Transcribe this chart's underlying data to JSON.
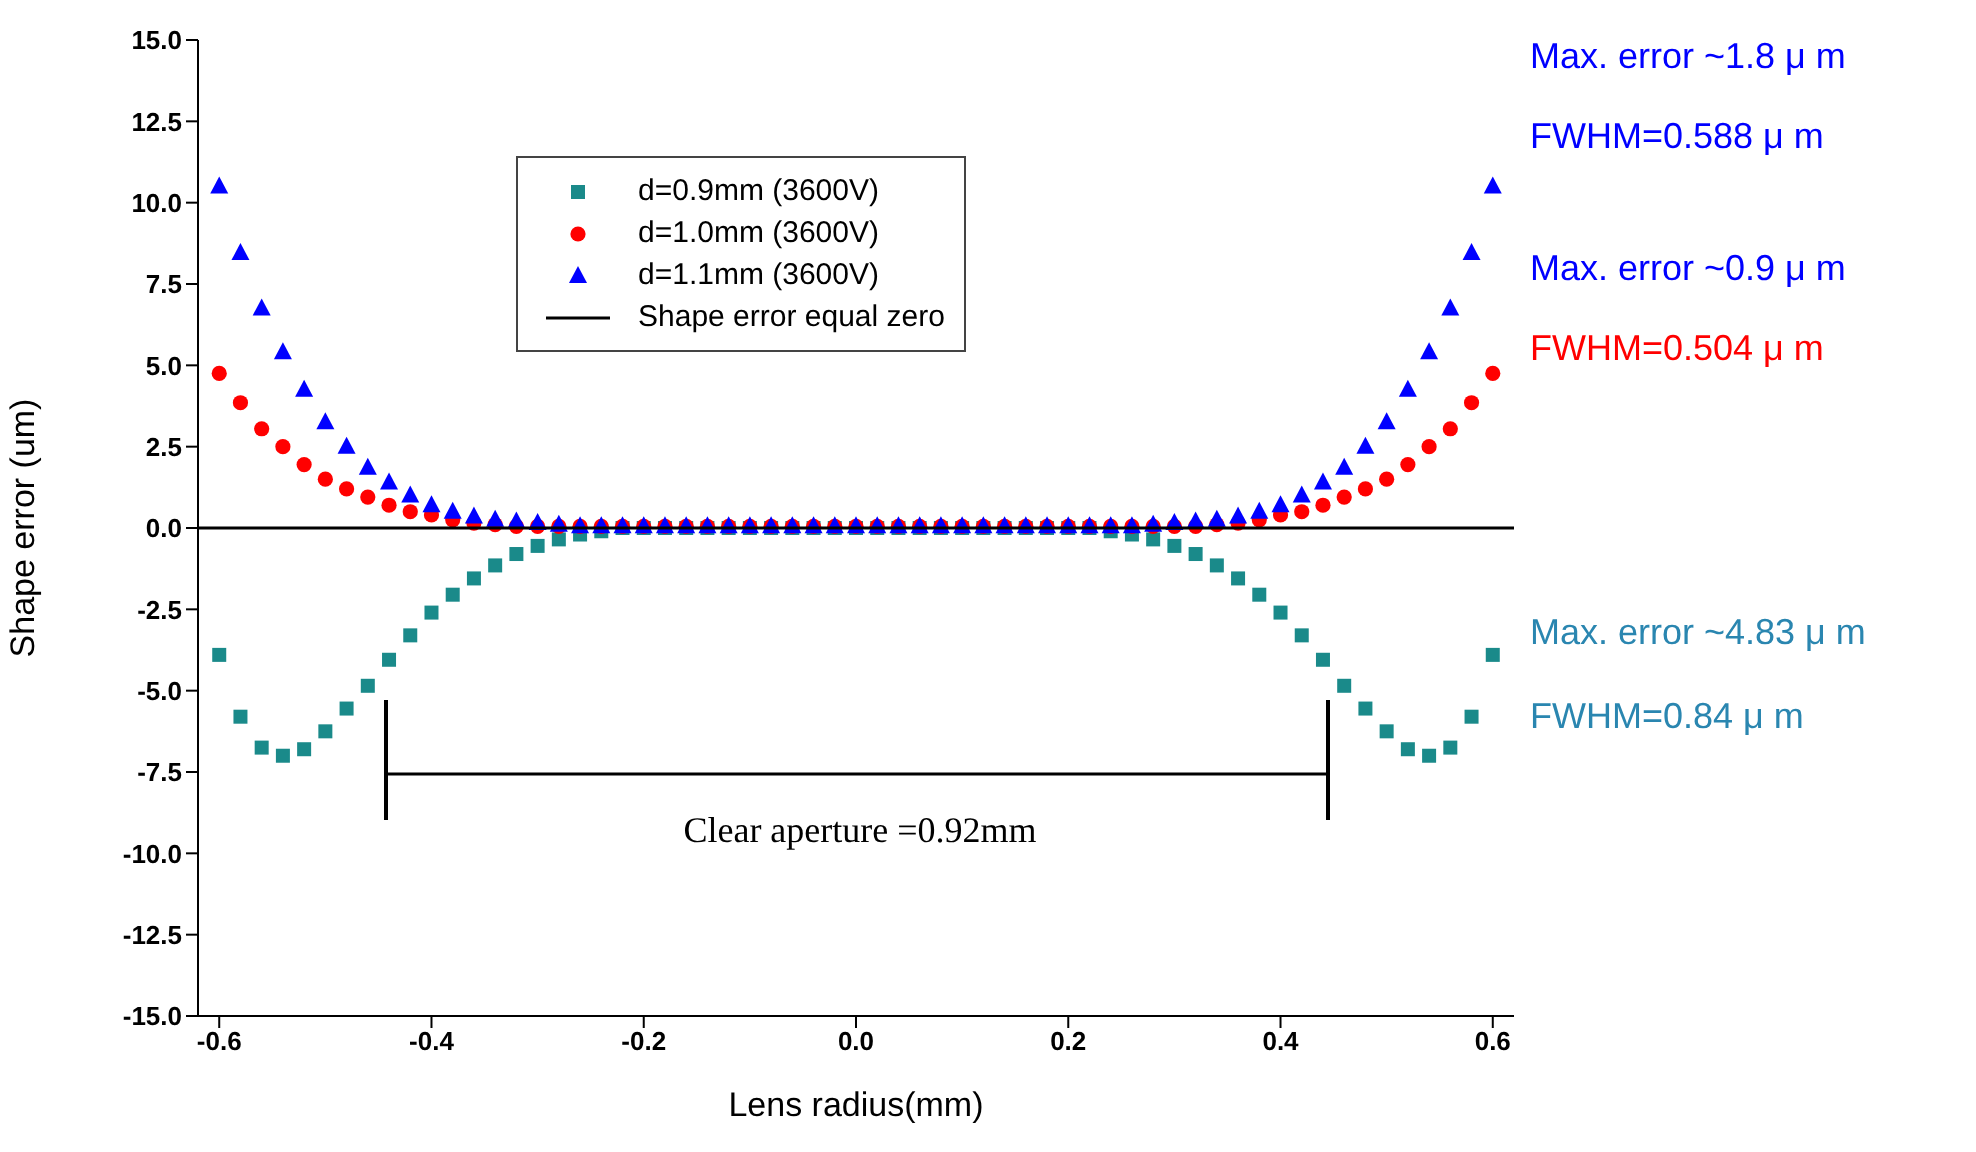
{
  "chart_data": {
    "type": "scatter",
    "xlabel": "Lens radius(mm)",
    "ylabel": "Shape error (um)",
    "x": [
      -0.6,
      -0.58,
      -0.56,
      -0.54,
      -0.52,
      -0.5,
      -0.48,
      -0.46,
      -0.44,
      -0.42,
      -0.4,
      -0.38,
      -0.36,
      -0.34,
      -0.32,
      -0.3,
      -0.28,
      -0.26,
      -0.24,
      -0.22,
      -0.2,
      -0.18,
      -0.16,
      -0.14,
      -0.12,
      -0.1,
      -0.08,
      -0.06,
      -0.04,
      -0.02,
      0,
      0.02,
      0.04,
      0.06,
      0.08,
      0.1,
      0.12,
      0.14,
      0.16,
      0.18,
      0.2,
      0.22,
      0.24,
      0.26,
      0.28,
      0.3,
      0.32,
      0.34,
      0.36,
      0.38,
      0.4,
      0.42,
      0.44,
      0.46,
      0.48,
      0.5,
      0.52,
      0.54,
      0.56,
      0.58,
      0.6
    ],
    "series": [
      {
        "name": "d=0.9mm (3600V)",
        "color": "#1a8a8a",
        "marker": "square",
        "values": [
          -3.9,
          -5.8,
          -6.75,
          -7.0,
          -6.8,
          -6.25,
          -5.55,
          -4.85,
          -4.05,
          -3.3,
          -2.6,
          -2.05,
          -1.55,
          -1.15,
          -0.8,
          -0.55,
          -0.35,
          -0.2,
          -0.1,
          0,
          0,
          0,
          0,
          0,
          0,
          0,
          0,
          0,
          0,
          0,
          0,
          0,
          0,
          0,
          0,
          0,
          0,
          0,
          0,
          0,
          0,
          0,
          -0.1,
          -0.2,
          -0.35,
          -0.55,
          -0.8,
          -1.15,
          -1.55,
          -2.05,
          -2.6,
          -3.3,
          -4.05,
          -4.85,
          -5.55,
          -6.25,
          -6.8,
          -7.0,
          -6.75,
          -5.8,
          -3.9
        ]
      },
      {
        "name": "d=1.0mm (3600V)",
        "color": "#ff0000",
        "marker": "circle",
        "values": [
          4.75,
          3.85,
          3.05,
          2.5,
          1.95,
          1.5,
          1.2,
          0.95,
          0.7,
          0.5,
          0.4,
          0.25,
          0.15,
          0.1,
          0.05,
          0.05,
          0.05,
          0.05,
          0.05,
          0.05,
          0.05,
          0.05,
          0.05,
          0.05,
          0.05,
          0.05,
          0.05,
          0.05,
          0.05,
          0.05,
          0.05,
          0.05,
          0.05,
          0.05,
          0.05,
          0.05,
          0.05,
          0.05,
          0.05,
          0.05,
          0.05,
          0.05,
          0.05,
          0.05,
          0.05,
          0.05,
          0.05,
          0.1,
          0.15,
          0.25,
          0.4,
          0.5,
          0.7,
          0.95,
          1.2,
          1.5,
          1.95,
          2.5,
          3.05,
          3.85,
          4.75
        ]
      },
      {
        "name": "d=1.1mm (3600V)",
        "color": "#0000ff",
        "marker": "triangle",
        "values": [
          10.5,
          8.45,
          6.75,
          5.4,
          4.25,
          3.25,
          2.5,
          1.85,
          1.4,
          1.0,
          0.7,
          0.5,
          0.35,
          0.25,
          0.2,
          0.15,
          0.1,
          0.05,
          0.05,
          0.05,
          0.05,
          0.05,
          0.05,
          0.05,
          0.05,
          0.05,
          0.05,
          0.05,
          0.05,
          0.05,
          0.05,
          0.05,
          0.05,
          0.05,
          0.05,
          0.05,
          0.05,
          0.05,
          0.05,
          0.05,
          0.05,
          0.05,
          0.05,
          0.05,
          0.1,
          0.15,
          0.2,
          0.25,
          0.35,
          0.5,
          0.7,
          1.0,
          1.4,
          1.85,
          2.5,
          3.25,
          4.25,
          5.4,
          6.75,
          8.45,
          10.5
        ]
      },
      {
        "name": "Shape error equal zero",
        "type": "line",
        "color": "#000000",
        "marker": "none",
        "x": [
          -0.62,
          0.62
        ],
        "values": [
          0,
          0
        ]
      }
    ],
    "xlim": [
      -0.62,
      0.62
    ],
    "xticks": [
      {
        "value": -0.6,
        "label": "-0.6"
      },
      {
        "value": -0.4,
        "label": "-0.4"
      },
      {
        "value": -0.2,
        "label": "-0.2"
      },
      {
        "value": 0,
        "label": "0.0"
      },
      {
        "value": 0.2,
        "label": "0.2"
      },
      {
        "value": 0.4,
        "label": "0.4"
      },
      {
        "value": 0.6,
        "label": "0.6"
      }
    ],
    "ylim": [
      -15,
      15
    ],
    "yticks": [
      {
        "value": -15,
        "label": "-15.0"
      },
      {
        "value": -12.5,
        "label": "-12.5"
      },
      {
        "value": -10,
        "label": "-10.0"
      },
      {
        "value": -7.5,
        "label": "-7.5"
      },
      {
        "value": -5,
        "label": "-5.0"
      },
      {
        "value": -2.5,
        "label": "-2.5"
      },
      {
        "value": 0,
        "label": "0.0"
      },
      {
        "value": 2.5,
        "label": "2.5"
      },
      {
        "value": 5,
        "label": "5.0"
      },
      {
        "value": 7.5,
        "label": "7.5"
      },
      {
        "value": 10,
        "label": "10.0"
      },
      {
        "value": 12.5,
        "label": "12.5"
      },
      {
        "value": 15,
        "label": "15.0"
      }
    ],
    "legend": "top",
    "annotations": [
      "Max. error ~1.8 μ m",
      "FWHM=0.588 μ m",
      "Max. error ~0.9 μ m",
      "FWHM=0.504 μ m",
      "Max. error ~4.83 μ m",
      "FWHM=0.84 μ m",
      "Clear aperture =0.92mm"
    ]
  }
}
